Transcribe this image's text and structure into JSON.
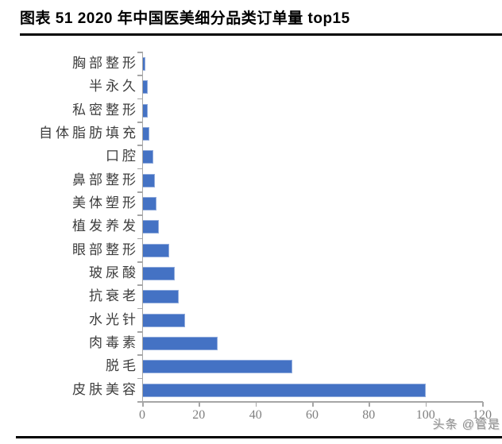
{
  "title": "图表 51 2020 年中国医美细分品类订单量 top15",
  "watermark": "头条 @管是",
  "colors": {
    "bar": "#4472C4",
    "bar_border": "#8FAADC",
    "axis": "#A6A6A6",
    "tick_label": "#7F7F7F",
    "category_label": "#3D3D3D",
    "title": "#000000",
    "watermark": "#8F8F8F"
  },
  "chart_data": {
    "type": "bar",
    "orientation": "horizontal",
    "title": "图表 51 2020 年中国医美细分品类订单量 top15",
    "xlabel": "",
    "ylabel": "",
    "categories": [
      "胸部整形",
      "半永久",
      "私密整形",
      "自体脂肪填充",
      "口腔",
      "鼻部整形",
      "美体塑形",
      "植发养发",
      "眼部整形",
      "玻尿酸",
      "抗衰老",
      "水光针",
      "肉毒素",
      "脱毛",
      "皮肤美容"
    ],
    "values": [
      1,
      2,
      2,
      2.5,
      4,
      4.5,
      5,
      6,
      9.5,
      11.5,
      13,
      15,
      26.5,
      53,
      100
    ],
    "xlim": [
      0,
      120
    ],
    "xticks": [
      0,
      20,
      40,
      60,
      80,
      100,
      120
    ],
    "grid": false,
    "legend": false
  }
}
